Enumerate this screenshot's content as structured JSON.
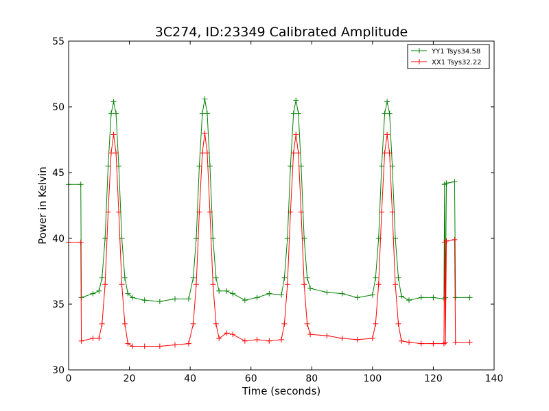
{
  "chart_data": {
    "type": "line",
    "title": "3C274, ID:23349 Calibrated Amplitude",
    "xlabel": "Time (seconds)",
    "ylabel": "Power in Kelvin",
    "xlim": [
      0,
      140
    ],
    "ylim": [
      30,
      55
    ],
    "xticks": [
      "0",
      "20",
      "40",
      "60",
      "80",
      "100",
      "120",
      "140"
    ],
    "yticks": [
      "30",
      "35",
      "40",
      "45",
      "50",
      "55"
    ],
    "grid": false,
    "legend_position": "top-right",
    "marker": "plus",
    "series": [
      {
        "name": "YY1 Tsys34.58",
        "color": "#008000",
        "points": [
          [
            0,
            44.1
          ],
          [
            4,
            44.1
          ],
          [
            4.2,
            35.5
          ],
          [
            8,
            35.8
          ],
          [
            10,
            36.0
          ],
          [
            11,
            37.0
          ],
          [
            12,
            40.0
          ],
          [
            13,
            45.5
          ],
          [
            14,
            49.5
          ],
          [
            14.8,
            50.4
          ],
          [
            15.6,
            49.5
          ],
          [
            16.5,
            45.5
          ],
          [
            17.5,
            40.0
          ],
          [
            18.5,
            37.0
          ],
          [
            19.5,
            35.8
          ],
          [
            21,
            35.5
          ],
          [
            25,
            35.3
          ],
          [
            30,
            35.2
          ],
          [
            35,
            35.4
          ],
          [
            39.5,
            35.4
          ],
          [
            41,
            37.0
          ],
          [
            42,
            40.0
          ],
          [
            43,
            45.5
          ],
          [
            44,
            49.5
          ],
          [
            44.8,
            50.6
          ],
          [
            45.6,
            49.5
          ],
          [
            46.5,
            45.5
          ],
          [
            47.5,
            40.0
          ],
          [
            48.5,
            37.0
          ],
          [
            49.5,
            36.0
          ],
          [
            52,
            36.0
          ],
          [
            54,
            35.8
          ],
          [
            58,
            35.3
          ],
          [
            62,
            35.5
          ],
          [
            66,
            35.8
          ],
          [
            70,
            35.7
          ],
          [
            71,
            37.0
          ],
          [
            72,
            40.0
          ],
          [
            73,
            45.5
          ],
          [
            74,
            49.5
          ],
          [
            74.8,
            50.5
          ],
          [
            75.6,
            49.5
          ],
          [
            76.5,
            45.5
          ],
          [
            77.5,
            40.0
          ],
          [
            78.5,
            37.0
          ],
          [
            79.5,
            36.2
          ],
          [
            85,
            35.9
          ],
          [
            90,
            35.8
          ],
          [
            95,
            35.5
          ],
          [
            100,
            35.7
          ],
          [
            101,
            37.0
          ],
          [
            102,
            40.0
          ],
          [
            103,
            45.5
          ],
          [
            104,
            49.5
          ],
          [
            104.8,
            50.4
          ],
          [
            105.6,
            49.5
          ],
          [
            106.5,
            45.5
          ],
          [
            107.5,
            40.0
          ],
          [
            108.5,
            37.0
          ],
          [
            109.5,
            35.6
          ],
          [
            112,
            35.3
          ],
          [
            116,
            35.5
          ],
          [
            120,
            35.5
          ],
          [
            123.5,
            35.4
          ],
          [
            123.7,
            44.1
          ],
          [
            124,
            35.5
          ],
          [
            124.3,
            44.2
          ],
          [
            127,
            44.3
          ],
          [
            127.3,
            35.5
          ],
          [
            132,
            35.5
          ]
        ]
      },
      {
        "name": "XX1 Tsys32.22",
        "color": "#ff0000",
        "points": [
          [
            0,
            39.7
          ],
          [
            4,
            39.7
          ],
          [
            4.2,
            32.2
          ],
          [
            8,
            32.4
          ],
          [
            10,
            32.4
          ],
          [
            11,
            33.5
          ],
          [
            12,
            36.5
          ],
          [
            13,
            42.0
          ],
          [
            14,
            46.5
          ],
          [
            14.8,
            47.9
          ],
          [
            15.6,
            46.5
          ],
          [
            16.5,
            42.0
          ],
          [
            17.5,
            36.5
          ],
          [
            18.5,
            33.5
          ],
          [
            19.5,
            32.0
          ],
          [
            21,
            31.8
          ],
          [
            25,
            31.8
          ],
          [
            30,
            31.8
          ],
          [
            35,
            31.9
          ],
          [
            39.5,
            32.0
          ],
          [
            41,
            33.5
          ],
          [
            42,
            36.5
          ],
          [
            43,
            42.0
          ],
          [
            44,
            46.5
          ],
          [
            44.8,
            48.0
          ],
          [
            45.6,
            46.5
          ],
          [
            46.5,
            42.0
          ],
          [
            47.5,
            36.5
          ],
          [
            48.5,
            33.5
          ],
          [
            49.5,
            32.4
          ],
          [
            52,
            32.8
          ],
          [
            54,
            32.7
          ],
          [
            58,
            32.2
          ],
          [
            62,
            32.3
          ],
          [
            66,
            32.2
          ],
          [
            70,
            32.3
          ],
          [
            71,
            33.5
          ],
          [
            72,
            36.5
          ],
          [
            73,
            42.0
          ],
          [
            74,
            46.5
          ],
          [
            74.8,
            47.9
          ],
          [
            75.6,
            46.5
          ],
          [
            76.5,
            42.0
          ],
          [
            77.5,
            36.5
          ],
          [
            78.5,
            33.5
          ],
          [
            79.5,
            32.7
          ],
          [
            85,
            32.6
          ],
          [
            90,
            32.4
          ],
          [
            95,
            32.3
          ],
          [
            100,
            32.4
          ],
          [
            101,
            33.5
          ],
          [
            102,
            36.5
          ],
          [
            103,
            42.0
          ],
          [
            104,
            46.5
          ],
          [
            104.8,
            47.9
          ],
          [
            105.6,
            46.5
          ],
          [
            106.5,
            42.0
          ],
          [
            107.5,
            36.5
          ],
          [
            108.5,
            33.5
          ],
          [
            109.5,
            32.2
          ],
          [
            112,
            32.1
          ],
          [
            116,
            32.0
          ],
          [
            120,
            32.0
          ],
          [
            123.5,
            32.0
          ],
          [
            123.7,
            39.7
          ],
          [
            124,
            32.1
          ],
          [
            124.3,
            39.8
          ],
          [
            127,
            39.9
          ],
          [
            127.3,
            32.1
          ],
          [
            132,
            32.1
          ]
        ]
      }
    ]
  }
}
